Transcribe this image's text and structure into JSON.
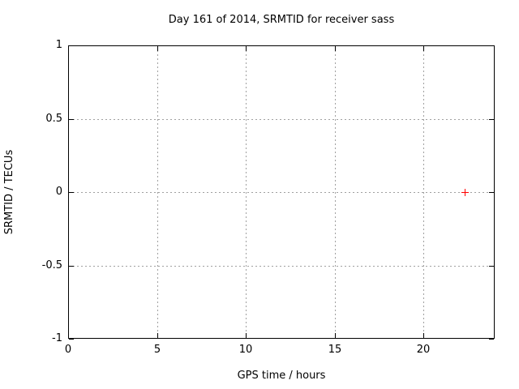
{
  "chart_data": {
    "type": "scatter",
    "title": "Day 161 of 2014, SRMTID for receiver sass",
    "xlabel": "GPS time / hours",
    "ylabel": "SRMTID / TECUs",
    "xlim": [
      0,
      24
    ],
    "ylim": [
      -1,
      1
    ],
    "xticks": [
      {
        "v": 0,
        "label": "0"
      },
      {
        "v": 5,
        "label": "5"
      },
      {
        "v": 10,
        "label": "10"
      },
      {
        "v": 15,
        "label": "15"
      },
      {
        "v": 20,
        "label": "20"
      }
    ],
    "yticks": [
      {
        "v": 1,
        "label": "1"
      },
      {
        "v": 0.5,
        "label": "0.5"
      },
      {
        "v": 0,
        "label": "0"
      },
      {
        "v": -0.5,
        "label": "-0.5"
      },
      {
        "v": -1,
        "label": "-1"
      }
    ],
    "grid": true,
    "legend_position": "none",
    "series": [
      {
        "marker": "plus",
        "color": "#ff0000",
        "points": [
          {
            "x": 22.3,
            "y": 0.0
          }
        ]
      }
    ],
    "colors": {
      "background": "#ffffff",
      "border": "#000000",
      "grid": "#a0a0a0",
      "text": "#000000",
      "marker": "#ff0000"
    }
  }
}
